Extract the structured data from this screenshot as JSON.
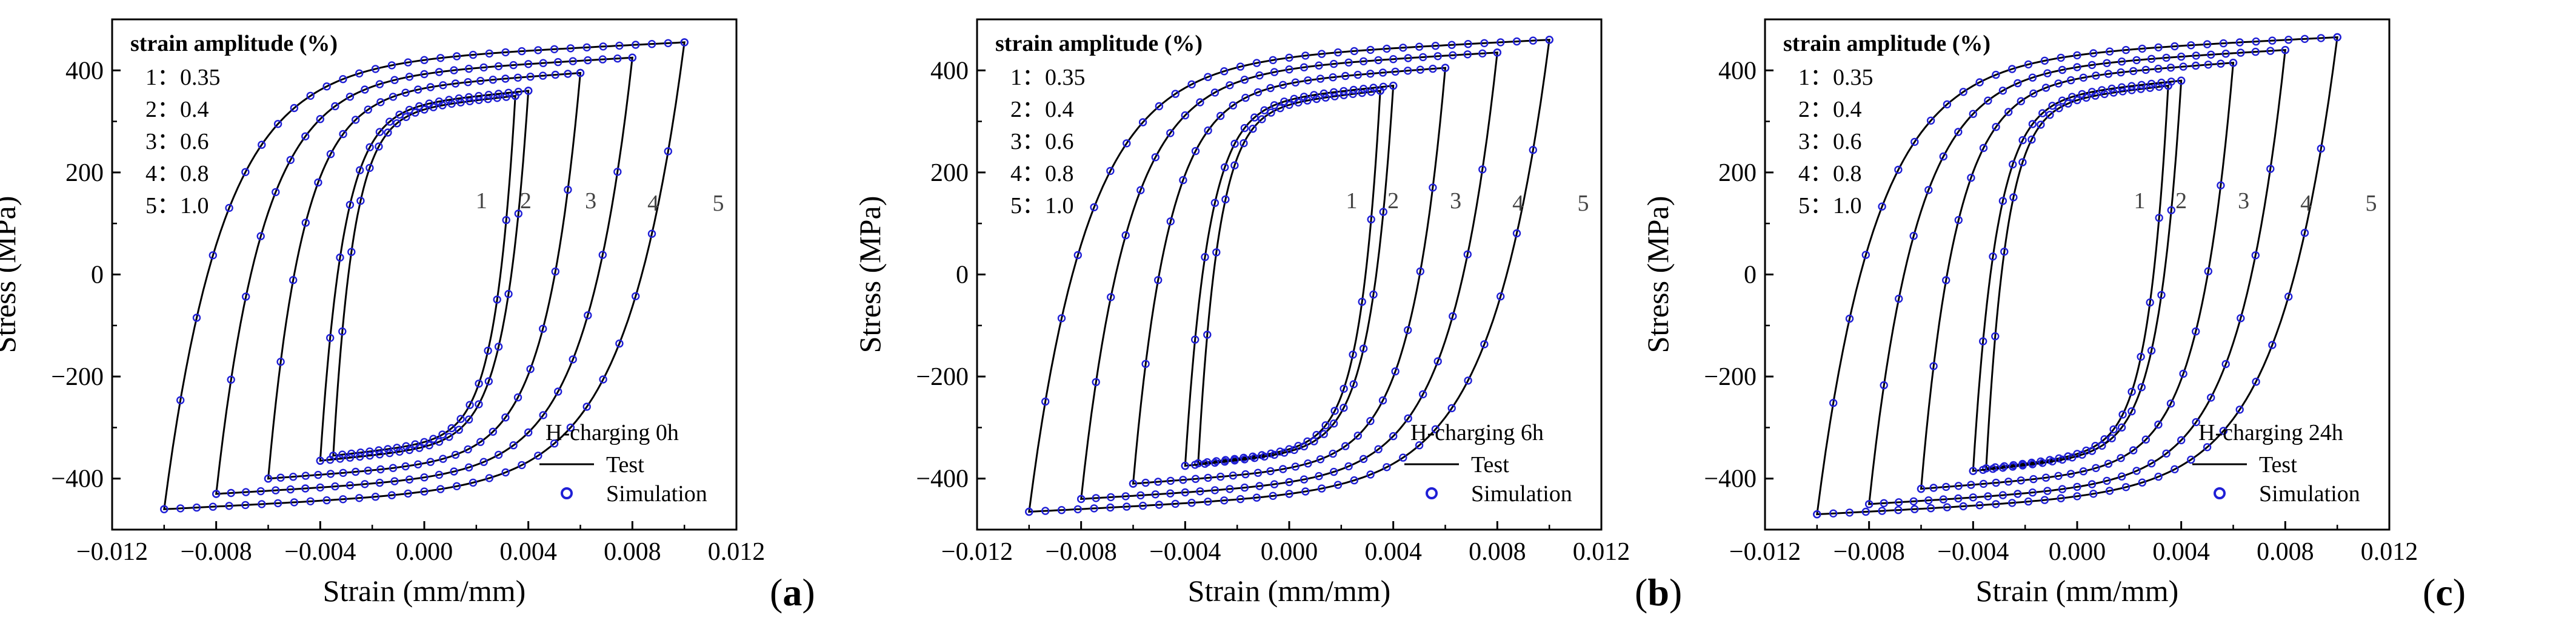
{
  "colors": {
    "test": "#000000",
    "simulation": "#1f1fd6"
  },
  "chart_data": [
    {
      "type": "line",
      "panel_label": "a",
      "xlabel": "Strain (mm/mm)",
      "ylabel": "Stress (MPa)",
      "xlim": [
        -0.012,
        0.012
      ],
      "ylim": [
        -500,
        500
      ],
      "xticks": [
        -0.012,
        -0.008,
        -0.004,
        0.0,
        0.004,
        0.008,
        0.012
      ],
      "xtick_labels": [
        "−0.012",
        "−0.008",
        "−0.004",
        "0.000",
        "0.004",
        "0.008",
        "0.012"
      ],
      "yticks": [
        -400,
        -200,
        0,
        200,
        400
      ],
      "ytick_labels": [
        "−400",
        "−200",
        "0",
        "200",
        "400"
      ],
      "amplitude_legend": {
        "title": "strain amplitude (%)",
        "entries": [
          "1：0.35",
          "2：0.4",
          "3：0.6",
          "4：0.8",
          "5：1.0"
        ]
      },
      "condition": "H-charging 0h",
      "legend": {
        "test": "Test",
        "simulation": "Simulation"
      },
      "loops": [
        {
          "id": "1",
          "strain_amplitude": 0.0035,
          "max_stress": 350,
          "min_stress": -355,
          "yield_offset": 180
        },
        {
          "id": "2",
          "strain_amplitude": 0.004,
          "max_stress": 360,
          "min_stress": -365,
          "yield_offset": 195
        },
        {
          "id": "3",
          "strain_amplitude": 0.006,
          "max_stress": 395,
          "min_stress": -400,
          "yield_offset": 225
        },
        {
          "id": "4",
          "strain_amplitude": 0.008,
          "max_stress": 425,
          "min_stress": -430,
          "yield_offset": 250
        },
        {
          "id": "5",
          "strain_amplitude": 0.01,
          "max_stress": 455,
          "min_stress": -460,
          "yield_offset": 265
        }
      ],
      "loop_label_positions": [
        {
          "id": "1",
          "x": 0.0022,
          "y": 130
        },
        {
          "id": "2",
          "x": 0.0039,
          "y": 130
        },
        {
          "id": "3",
          "x": 0.0064,
          "y": 130
        },
        {
          "id": "4",
          "x": 0.0088,
          "y": 125
        },
        {
          "id": "5",
          "x": 0.0113,
          "y": 125
        }
      ]
    },
    {
      "type": "line",
      "panel_label": "b",
      "xlabel": "Strain (mm/mm)",
      "ylabel": "Stress (MPa)",
      "xlim": [
        -0.012,
        0.012
      ],
      "ylim": [
        -500,
        500
      ],
      "xticks": [
        -0.012,
        -0.008,
        -0.004,
        0.0,
        0.004,
        0.008,
        0.012
      ],
      "xtick_labels": [
        "−0.012",
        "−0.008",
        "−0.004",
        "0.000",
        "0.004",
        "0.008",
        "0.012"
      ],
      "yticks": [
        -400,
        -200,
        0,
        200,
        400
      ],
      "ytick_labels": [
        "−400",
        "−200",
        "0",
        "200",
        "400"
      ],
      "amplitude_legend": {
        "title": "strain amplitude (%)",
        "entries": [
          "1：0.35",
          "2：0.4",
          "3：0.6",
          "4：0.8",
          "5：1.0"
        ]
      },
      "condition": "H-charging 6h",
      "legend": {
        "test": "Test",
        "simulation": "Simulation"
      },
      "loops": [
        {
          "id": "1",
          "strain_amplitude": 0.0035,
          "max_stress": 360,
          "min_stress": -370,
          "yield_offset": 185
        },
        {
          "id": "2",
          "strain_amplitude": 0.004,
          "max_stress": 370,
          "min_stress": -375,
          "yield_offset": 200
        },
        {
          "id": "3",
          "strain_amplitude": 0.006,
          "max_stress": 405,
          "min_stress": -410,
          "yield_offset": 230
        },
        {
          "id": "4",
          "strain_amplitude": 0.008,
          "max_stress": 435,
          "min_stress": -440,
          "yield_offset": 255
        },
        {
          "id": "5",
          "strain_amplitude": 0.01,
          "max_stress": 460,
          "min_stress": -465,
          "yield_offset": 270
        }
      ],
      "loop_label_positions": [
        {
          "id": "1",
          "x": 0.0024,
          "y": 130
        },
        {
          "id": "2",
          "x": 0.004,
          "y": 130
        },
        {
          "id": "3",
          "x": 0.0064,
          "y": 130
        },
        {
          "id": "4",
          "x": 0.0088,
          "y": 125
        },
        {
          "id": "5",
          "x": 0.0113,
          "y": 125
        }
      ]
    },
    {
      "type": "line",
      "panel_label": "c",
      "xlabel": "Strain (mm/mm)",
      "ylabel": "Stress (MPa)",
      "xlim": [
        -0.012,
        0.012
      ],
      "ylim": [
        -500,
        500
      ],
      "xticks": [
        -0.012,
        -0.008,
        -0.004,
        0.0,
        0.004,
        0.008,
        0.012
      ],
      "xtick_labels": [
        "−0.012",
        "−0.008",
        "−0.004",
        "0.000",
        "0.004",
        "0.008",
        "0.012"
      ],
      "yticks": [
        -400,
        -200,
        0,
        200,
        400
      ],
      "ytick_labels": [
        "−400",
        "−200",
        "0",
        "200",
        "400"
      ],
      "amplitude_legend": {
        "title": "strain amplitude (%)",
        "entries": [
          "1：0.35",
          "2：0.4",
          "3：0.6",
          "4：0.8",
          "5：1.0"
        ]
      },
      "condition": "H-charging 24h",
      "legend": {
        "test": "Test",
        "simulation": "Simulation"
      },
      "loops": [
        {
          "id": "1",
          "strain_amplitude": 0.0035,
          "max_stress": 370,
          "min_stress": -380,
          "yield_offset": 190
        },
        {
          "id": "2",
          "strain_amplitude": 0.004,
          "max_stress": 380,
          "min_stress": -385,
          "yield_offset": 205
        },
        {
          "id": "3",
          "strain_amplitude": 0.006,
          "max_stress": 415,
          "min_stress": -420,
          "yield_offset": 235
        },
        {
          "id": "4",
          "strain_amplitude": 0.008,
          "max_stress": 440,
          "min_stress": -450,
          "yield_offset": 260
        },
        {
          "id": "5",
          "strain_amplitude": 0.01,
          "max_stress": 465,
          "min_stress": -470,
          "yield_offset": 275
        }
      ],
      "loop_label_positions": [
        {
          "id": "1",
          "x": 0.0024,
          "y": 130
        },
        {
          "id": "2",
          "x": 0.004,
          "y": 130
        },
        {
          "id": "3",
          "x": 0.0064,
          "y": 130
        },
        {
          "id": "4",
          "x": 0.0088,
          "y": 125
        },
        {
          "id": "5",
          "x": 0.0113,
          "y": 125
        }
      ]
    }
  ]
}
